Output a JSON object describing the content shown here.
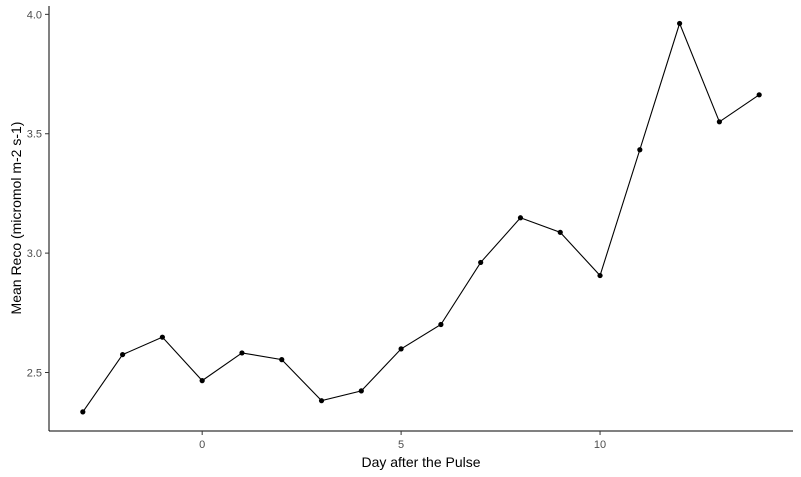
{
  "chart_data": {
    "type": "line",
    "title": "",
    "xlabel": "Day after the Pulse",
    "ylabel": "Mean Reco (micromol m-2 s-1)",
    "xlim": [
      -3.85,
      14.85
    ],
    "ylim": [
      2.255,
      4.035
    ],
    "x_ticks": [
      0,
      5,
      10
    ],
    "x_tick_labels": [
      "0",
      "5",
      "10"
    ],
    "y_ticks": [
      2.5,
      3.0,
      3.5,
      4.0
    ],
    "y_tick_labels": [
      "2.5",
      "3.0",
      "3.5",
      "4.0"
    ],
    "grid": false,
    "legend": "none",
    "series": [
      {
        "x": [
          -3,
          -2,
          -1,
          0,
          1,
          2,
          3,
          4,
          5,
          6,
          7,
          8,
          9,
          10,
          11,
          12,
          13,
          14
        ],
        "y": [
          2.335,
          2.575,
          2.648,
          2.466,
          2.582,
          2.554,
          2.382,
          2.423,
          2.599,
          2.701,
          2.961,
          3.148,
          3.087,
          2.906,
          3.433,
          3.962,
          3.55,
          3.663
        ]
      }
    ],
    "colors": {
      "line": "#000000",
      "point": "#000000",
      "axis": "#000000",
      "tick_label": "#4d4d4d",
      "background": "#ffffff"
    }
  }
}
